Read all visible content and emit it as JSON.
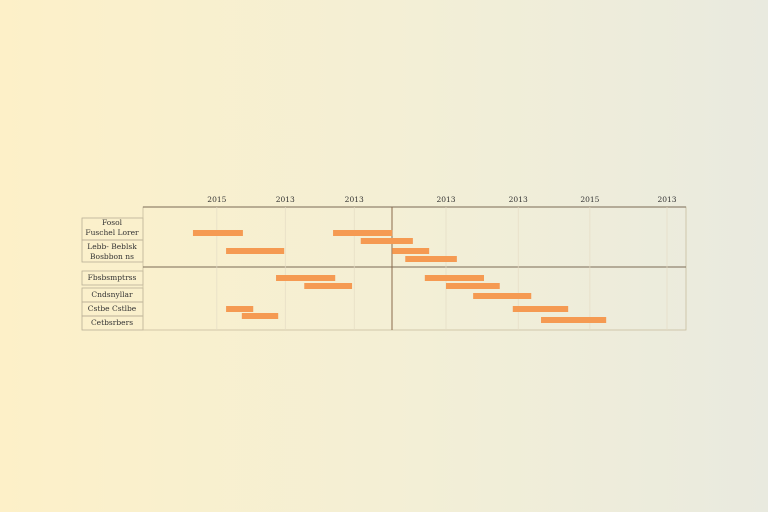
{
  "chart_data": {
    "type": "gantt",
    "labels": [
      "Fosol",
      "Fuschel Lorer",
      "Lebb- Beblsk",
      "Bosbbon ns",
      "Fbsbsmptrss",
      "Cndsnyllar",
      "Cstbe Cstlbe",
      "Cetbsrbers"
    ],
    "xlim": [
      0,
      100
    ],
    "xticks": [
      {
        "value": 13.6,
        "label": "2015"
      },
      {
        "value": 26.2,
        "label": "2013"
      },
      {
        "value": 38.9,
        "label": "2013"
      },
      {
        "value": 55.8,
        "label": "2013"
      },
      {
        "value": 69.1,
        "label": "2013"
      },
      {
        "value": 82.3,
        "label": "2015"
      },
      {
        "value": 96.5,
        "label": "2013"
      }
    ],
    "starts": [
      9.2,
      35.0,
      40.1,
      15.3,
      45.9,
      48.3,
      24.5,
      51.9,
      29.7,
      55.8,
      60.8,
      15.3,
      68.1,
      18.2,
      73.3
    ],
    "ends": [
      18.4,
      45.9,
      49.7,
      26.0,
      52.7,
      57.8,
      35.4,
      62.8,
      38.5,
      65.7,
      71.5,
      20.3,
      78.3,
      24.9,
      85.3
    ],
    "color": "#f59a52",
    "grid": true
  }
}
